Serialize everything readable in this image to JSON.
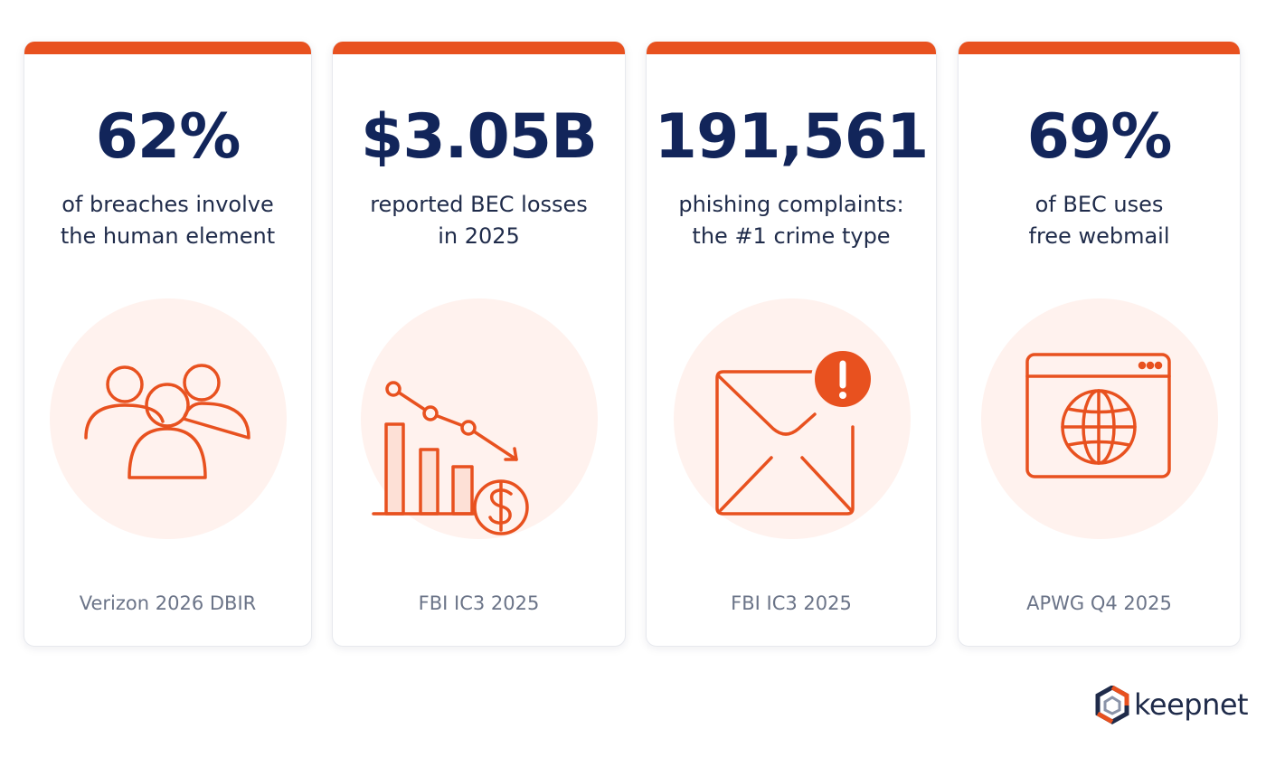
{
  "accent_color": "#e8511f",
  "cards": [
    {
      "stat": "62%",
      "desc_line1": "of breaches involve",
      "desc_line2": "the human element",
      "icon": "people-group-icon",
      "source": "Verizon 2026 DBIR"
    },
    {
      "stat": "$3.05B",
      "desc_line1": "reported BEC losses",
      "desc_line2": "in 2025",
      "icon": "declining-chart-dollar-icon",
      "source": "FBI IC3 2025"
    },
    {
      "stat": "191,561",
      "desc_line1": "phishing complaints:",
      "desc_line2": "the #1 crime type",
      "icon": "envelope-alert-icon",
      "source": "FBI IC3 2025"
    },
    {
      "stat": "69%",
      "desc_line1": "of BEC uses",
      "desc_line2": "free webmail",
      "icon": "browser-globe-icon",
      "source": "APWG Q4 2025"
    }
  ],
  "brand": {
    "name": "keepnet",
    "icon": "keepnet-logo-icon"
  }
}
